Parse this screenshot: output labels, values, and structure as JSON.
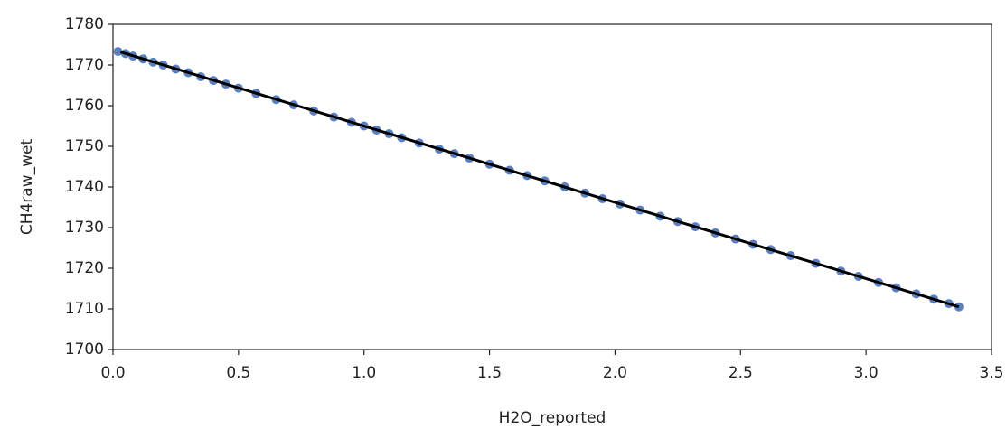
{
  "chart_data": {
    "type": "scatter",
    "x_label": "H2O_reported",
    "y_label": "CH4raw_wet",
    "color": "#5a80c0",
    "x": [
      0.02,
      0.05,
      0.08,
      0.12,
      0.16,
      0.2,
      0.25,
      0.3,
      0.35,
      0.4,
      0.45,
      0.5,
      0.57,
      0.65,
      0.72,
      0.8,
      0.88,
      0.95,
      1.0,
      1.05,
      1.1,
      1.15,
      1.22,
      1.3,
      1.36,
      1.42,
      1.5,
      1.58,
      1.65,
      1.72,
      1.8,
      1.88,
      1.95,
      2.02,
      2.1,
      2.18,
      2.25,
      2.32,
      2.4,
      2.48,
      2.55,
      2.62,
      2.7,
      2.8,
      2.9,
      2.97,
      3.05,
      3.12,
      3.2,
      3.27,
      3.33,
      3.37
    ],
    "values": [
      1773.3,
      1772.8,
      1772.2,
      1771.5,
      1770.7,
      1770.0,
      1769.0,
      1768.1,
      1767.1,
      1766.2,
      1765.3,
      1764.3,
      1763.0,
      1761.5,
      1760.2,
      1758.7,
      1757.2,
      1755.9,
      1755.0,
      1754.0,
      1753.1,
      1752.1,
      1750.8,
      1749.3,
      1748.2,
      1747.1,
      1745.6,
      1744.1,
      1742.8,
      1741.5,
      1740.0,
      1738.5,
      1737.1,
      1735.8,
      1734.3,
      1732.8,
      1731.5,
      1730.2,
      1728.7,
      1727.2,
      1725.9,
      1724.6,
      1723.1,
      1721.2,
      1719.3,
      1718.0,
      1716.5,
      1715.2,
      1713.7,
      1712.4,
      1711.3,
      1710.5
    ],
    "trendline": {
      "color": "#000000",
      "x": [
        0.03,
        3.37
      ],
      "values": [
        1773.2,
        1710.5
      ]
    },
    "xlim": [
      0,
      3.5
    ],
    "xticks": [
      {
        "value": 0,
        "label": "0.0"
      },
      0.5,
      {
        "value": 1,
        "label": "1.0"
      },
      1.5,
      {
        "value": 2,
        "label": "2.0"
      },
      2.5,
      {
        "value": 3,
        "label": "3.0"
      },
      3.5
    ],
    "ylim": [
      1700,
      1780
    ],
    "yticks": [
      1700,
      1710,
      1720,
      1730,
      1740,
      1750,
      1760,
      1770,
      1780
    ],
    "grid": false
  }
}
